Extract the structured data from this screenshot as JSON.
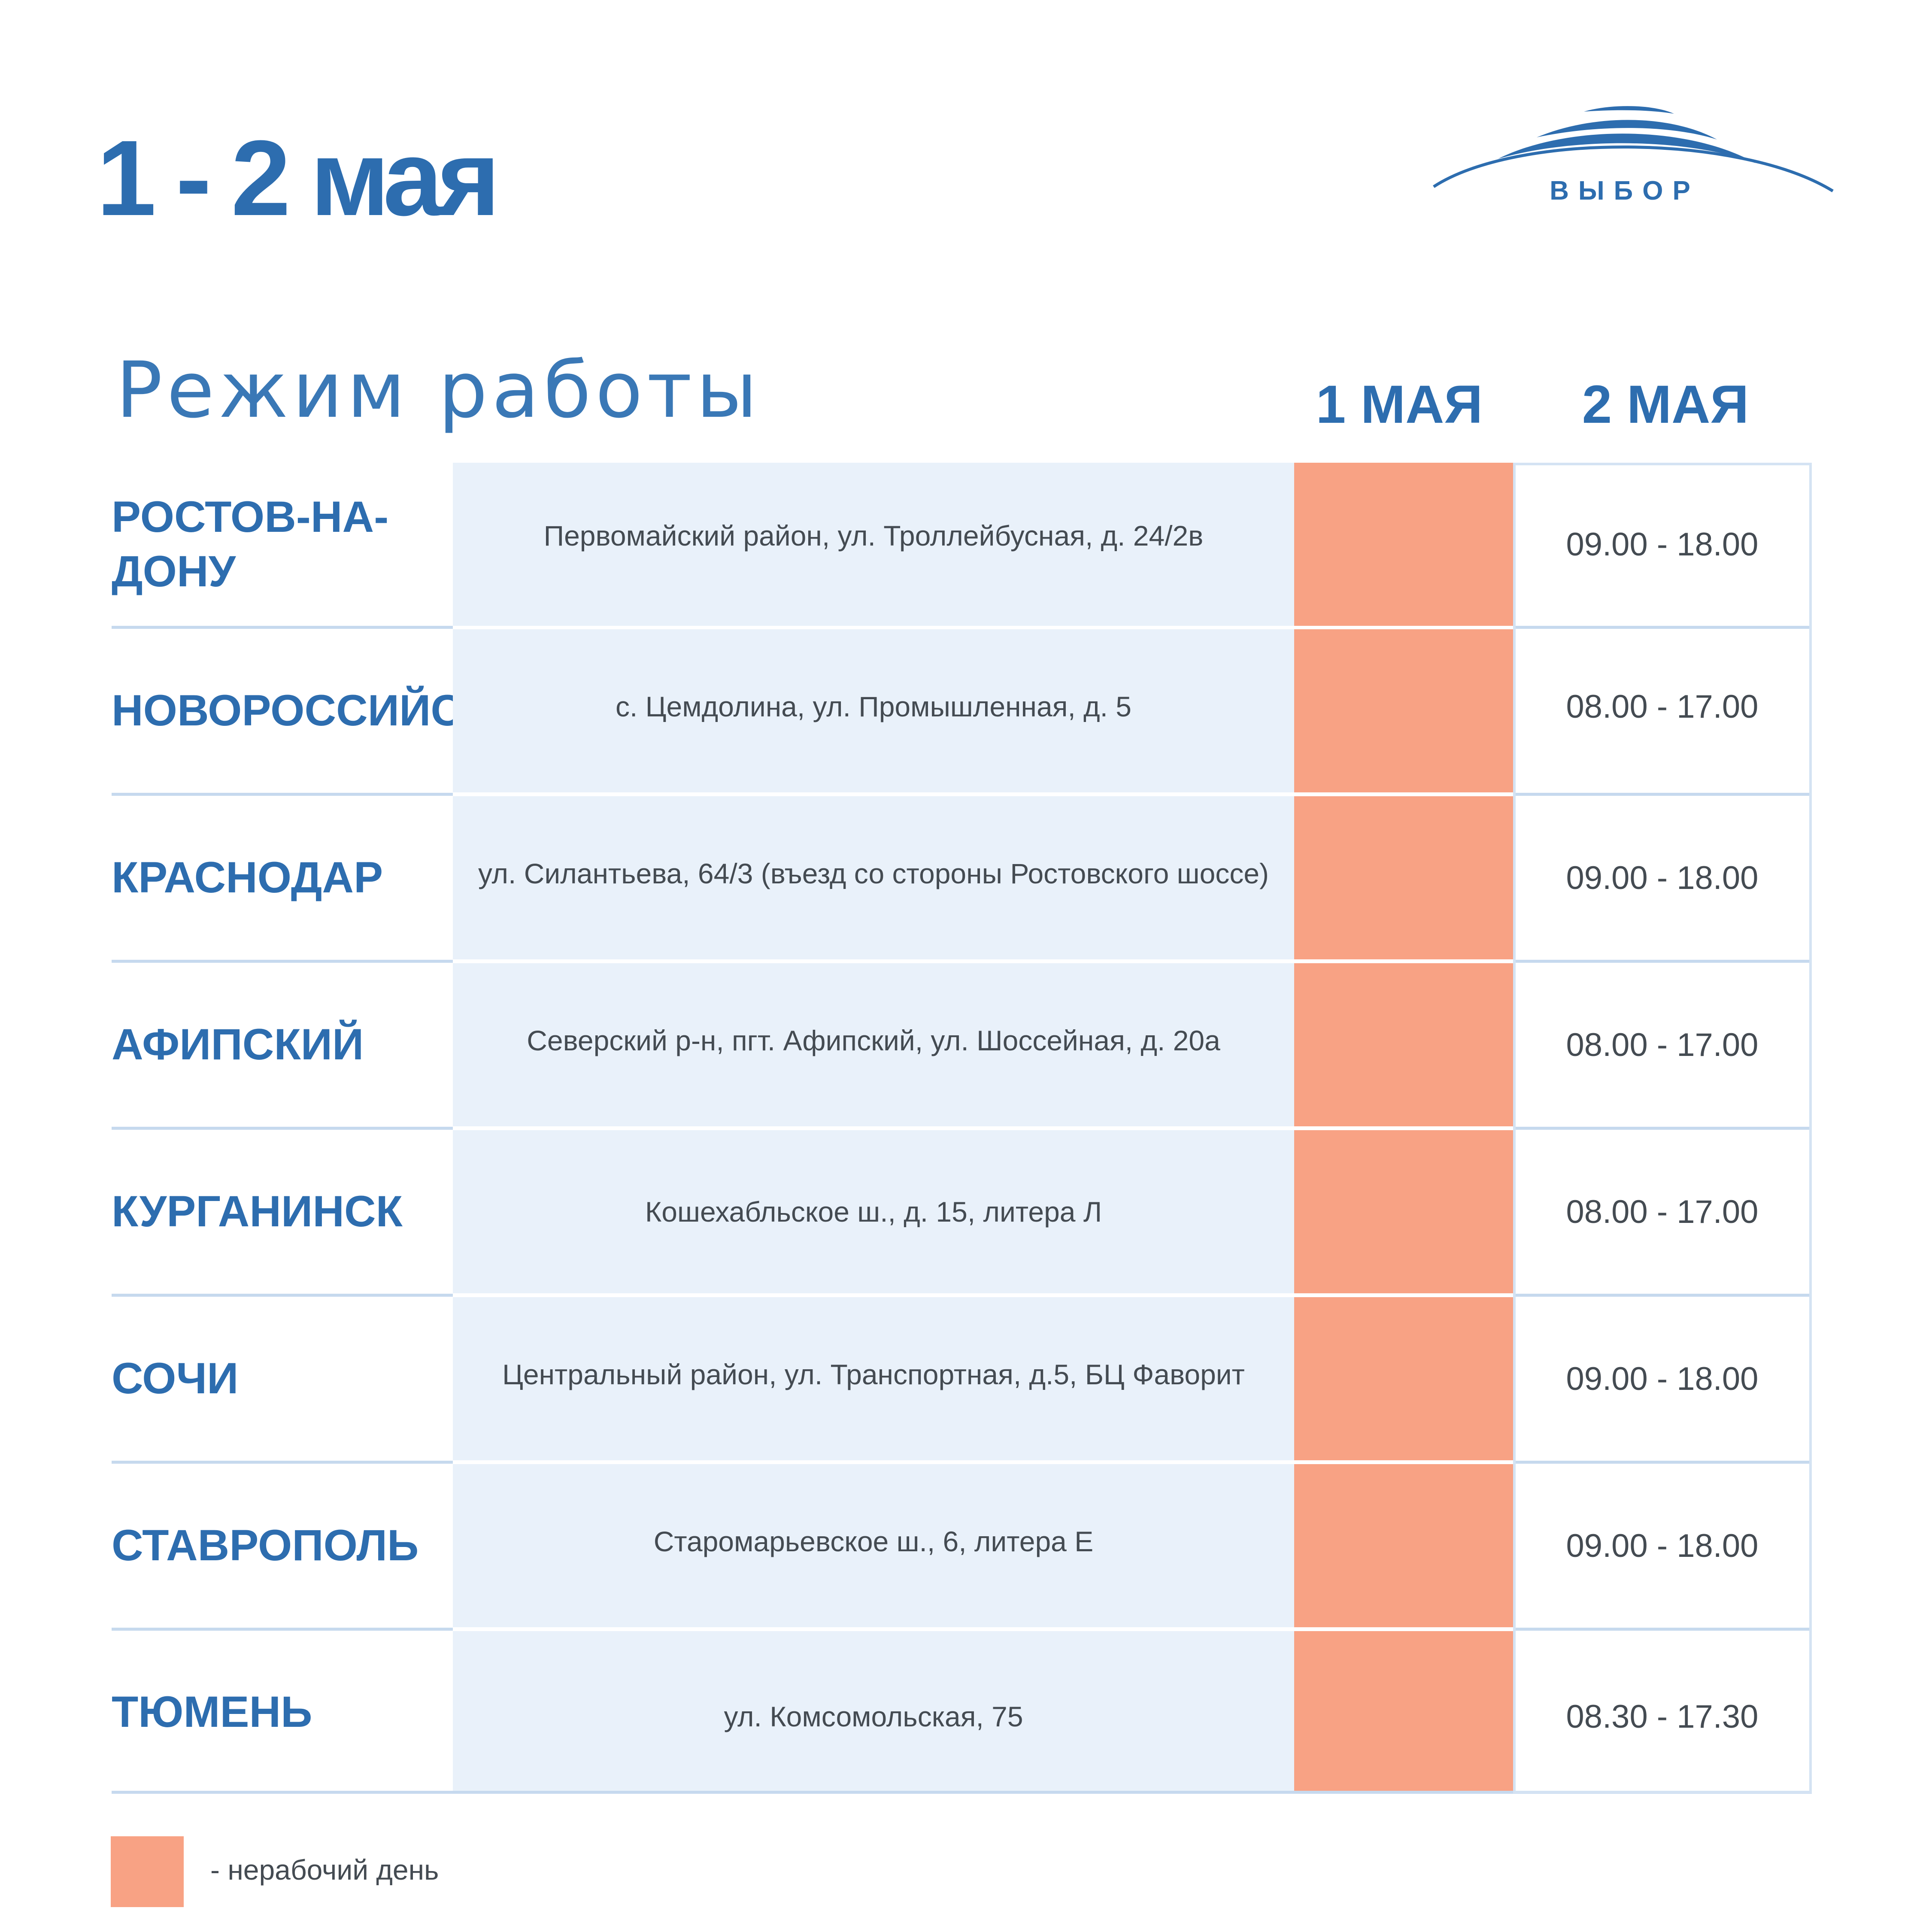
{
  "header": {
    "title": "1 - 2 мая",
    "logo_text": "ВЫБОР"
  },
  "table": {
    "subtitle": "Режим работы",
    "day1_label": "1 МАЯ",
    "day2_label": "2 МАЯ",
    "rows": [
      {
        "city": "РОСТОВ-НА-ДОНУ",
        "address": "Первомайский район, ул. Троллейбусная, д. 24/2в",
        "day2_hours": "09.00 - 18.00"
      },
      {
        "city": "НОВОРОССИЙСК",
        "address": "с. Цемдолина, ул. Промышленная, д. 5",
        "day2_hours": "08.00 - 17.00"
      },
      {
        "city": "КРАСНОДАР",
        "address": "ул. Силантьева, 64/3 (въезд со стороны Ростовского шоссе)",
        "day2_hours": "09.00 - 18.00"
      },
      {
        "city": "АФИПСКИЙ",
        "address": "Северский р-н, пгт. Афипский, ул. Шоссейная, д. 20а",
        "day2_hours": "08.00 - 17.00"
      },
      {
        "city": "КУРГАНИНСК",
        "address": "Кошехабльское ш., д. 15, литера Л",
        "day2_hours": "08.00 - 17.00"
      },
      {
        "city": "СОЧИ",
        "address": "Центральный район, ул. Транспортная, д.5, БЦ Фаворит",
        "day2_hours": "09.00 - 18.00"
      },
      {
        "city": "СТАВРОПОЛЬ",
        "address": "Старомарьевское ш., 6, литера Е",
        "day2_hours": "09.00 - 18.00"
      },
      {
        "city": "ТЮМЕНЬ",
        "address": "ул. Комсомольская, 75",
        "day2_hours": "08.30 - 17.30"
      }
    ]
  },
  "legend": {
    "text": "- нерабочий день",
    "color": "#f8a284"
  },
  "colors": {
    "brand_blue": "#2d6daf",
    "address_bg": "#e9f1fa",
    "non_working": "#f8a284"
  }
}
